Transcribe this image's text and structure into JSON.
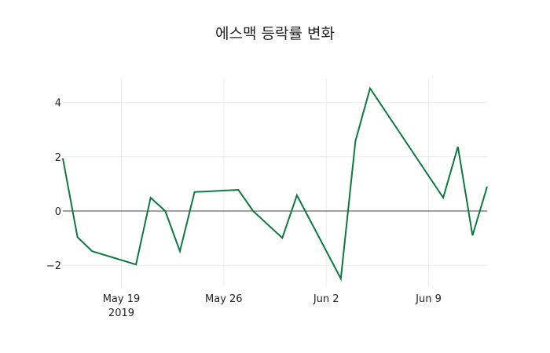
{
  "chart_data": {
    "type": "line",
    "title": "에스맥 등락률 변화",
    "xlabel": "",
    "ylabel": "",
    "x_tick_labels": [
      "May 19",
      "May 26",
      "Jun 2",
      "Jun 9"
    ],
    "x_tick_sublabel": "2019",
    "y_tick_labels": [
      "−2",
      "0",
      "2",
      "4"
    ],
    "y_ticks": [
      -2,
      0,
      2,
      4
    ],
    "ylim": [
      -2.85,
      4.9
    ],
    "xlim": [
      "2019-05-15",
      "2019-06-13"
    ],
    "grid": true,
    "legend": false,
    "line_color": "#0b7a3e",
    "series": [
      {
        "name": "등락률",
        "x": [
          "2019-05-15",
          "2019-05-16",
          "2019-05-17",
          "2019-05-20",
          "2019-05-21",
          "2019-05-22",
          "2019-05-23",
          "2019-05-24",
          "2019-05-27",
          "2019-05-28",
          "2019-05-30",
          "2019-05-31",
          "2019-06-03",
          "2019-06-04",
          "2019-06-05",
          "2019-06-10",
          "2019-06-11",
          "2019-06-12",
          "2019-06-13"
        ],
        "values": [
          1.94,
          -0.96,
          -1.48,
          -1.97,
          0.49,
          0.0,
          -1.48,
          0.7,
          0.78,
          0.0,
          -0.99,
          0.58,
          -2.49,
          2.58,
          4.52,
          0.49,
          2.37,
          -0.9,
          0.9
        ]
      }
    ]
  }
}
